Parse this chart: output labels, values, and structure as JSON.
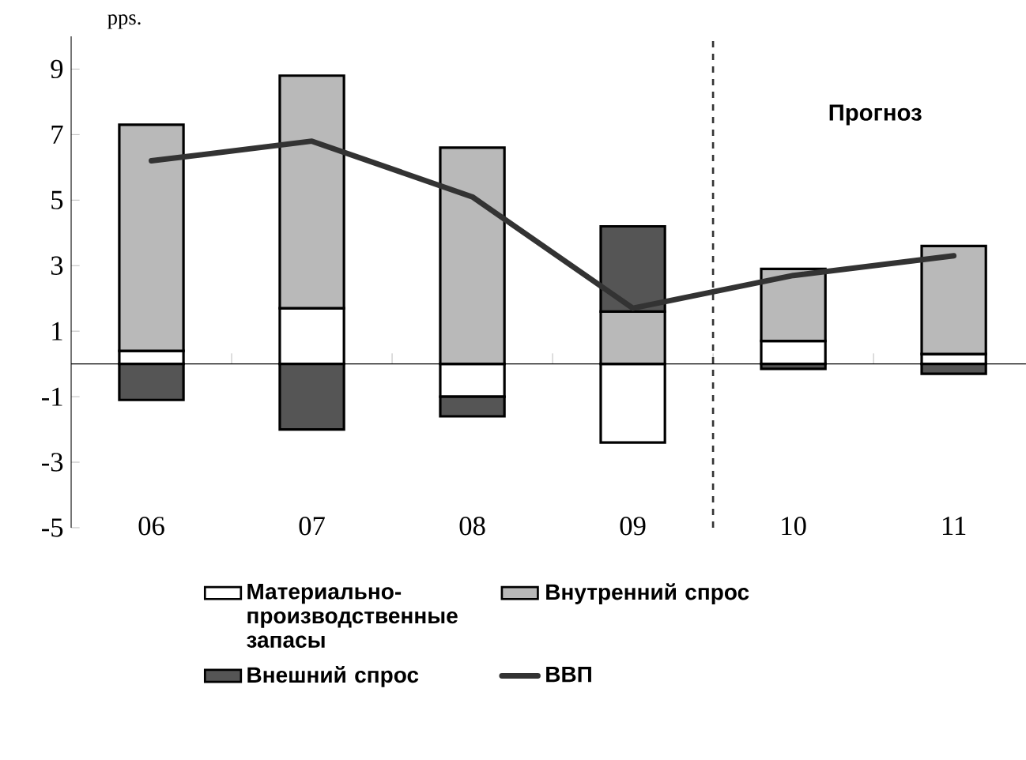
{
  "chart_data": {
    "type": "bar",
    "stacked": true,
    "ylabel": "pps.",
    "categories": [
      "06",
      "07",
      "08",
      "09",
      "10",
      "11"
    ],
    "series": [
      {
        "name": "Материально-производственные запасы",
        "color": "#ffffff",
        "values": [
          0.4,
          1.7,
          -1.0,
          -2.4,
          0.7,
          0.3
        ]
      },
      {
        "name": "Внутренний спрос",
        "color": "#b9b9b9",
        "values": [
          6.9,
          7.1,
          6.6,
          1.6,
          2.2,
          3.3
        ]
      },
      {
        "name": "Внешний спрос",
        "color": "#555555",
        "values": [
          -1.1,
          -2.0,
          -0.6,
          2.6,
          -0.15,
          -0.3
        ]
      },
      {
        "name": "ВВП",
        "type": "line",
        "color": "#333333",
        "values": [
          6.2,
          6.8,
          5.1,
          1.7,
          2.7,
          3.3
        ]
      }
    ],
    "ylim": [
      -5,
      10
    ],
    "yticks": [
      -5,
      -3,
      -1,
      1,
      3,
      5,
      7,
      9
    ],
    "annotations": [
      "Прогноз"
    ],
    "legend": "bottom",
    "grid": false
  }
}
